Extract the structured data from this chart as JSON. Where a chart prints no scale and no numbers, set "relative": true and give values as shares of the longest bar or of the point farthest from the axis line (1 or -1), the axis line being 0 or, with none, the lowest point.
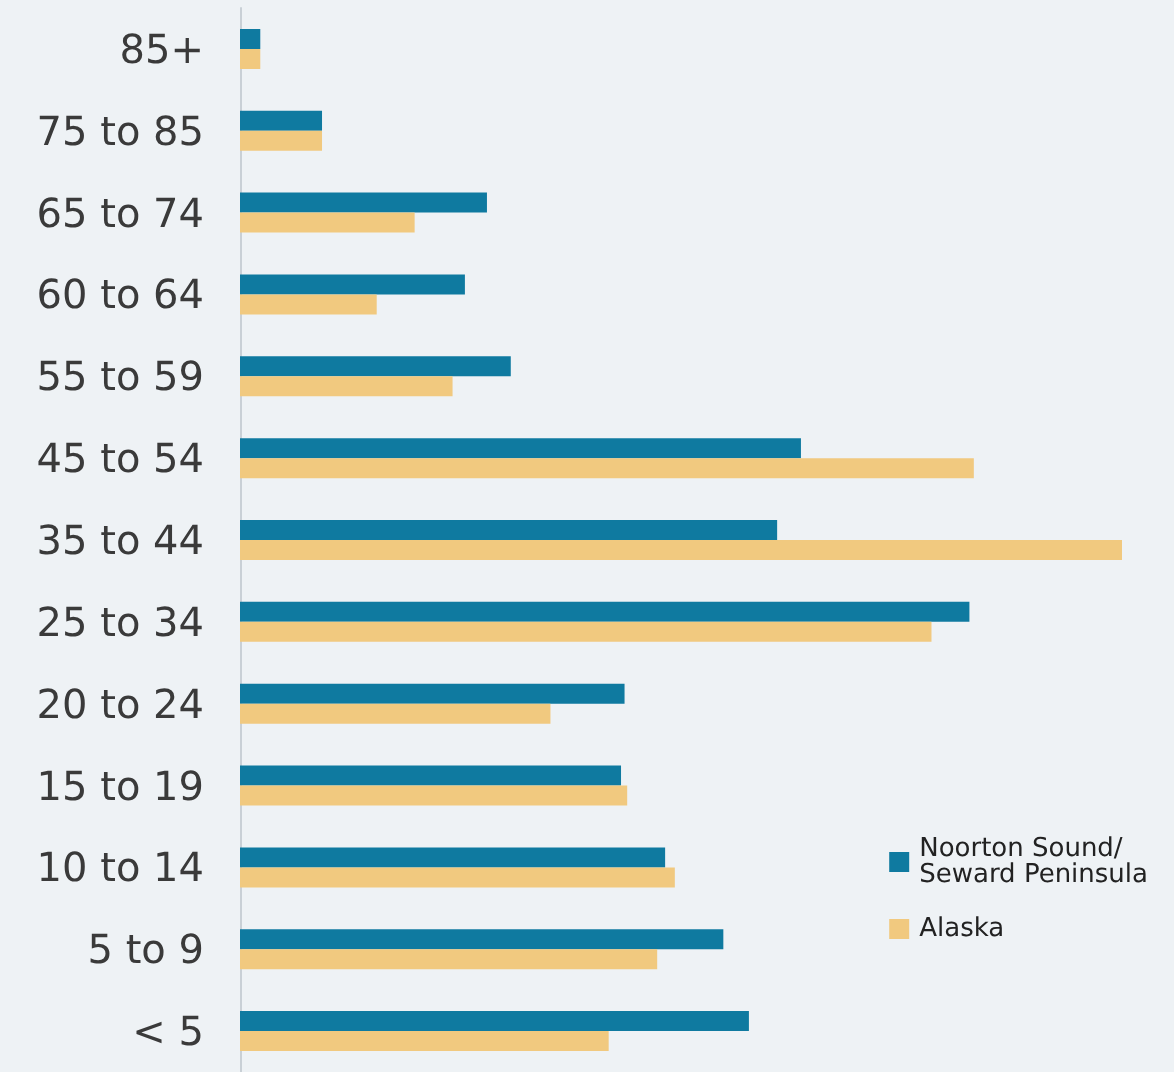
{
  "chart_data": {
    "type": "bar",
    "orientation": "horizontal",
    "relative": true,
    "categories": [
      "85+",
      "75 to 85",
      "65 to 74",
      "60 to 64",
      "55 to 59",
      "45 to 54",
      "35 to 44",
      "25 to 34",
      "20 to 24",
      "15 to 19",
      "10 to 14",
      "5 to 9",
      "< 5"
    ],
    "series": [
      {
        "name": "Noorton Sound/ Seward Peninsula",
        "color": "#0f7aa0",
        "values": [
          0.023,
          0.093,
          0.28,
          0.255,
          0.307,
          0.636,
          0.609,
          0.827,
          0.436,
          0.432,
          0.482,
          0.548,
          0.577
        ]
      },
      {
        "name": "Alaska",
        "color": "#f1c97f",
        "values": [
          0.023,
          0.093,
          0.198,
          0.155,
          0.241,
          0.832,
          1,
          0.784,
          0.352,
          0.439,
          0.493,
          0.473,
          0.418
        ]
      }
    ],
    "legend": "bottom right"
  }
}
